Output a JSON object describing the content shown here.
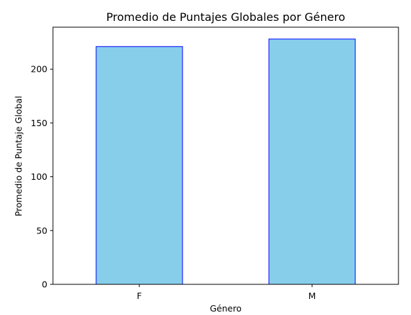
{
  "chart_data": {
    "type": "bar",
    "title": "Promedio de Puntajes Globales por Género",
    "xlabel": "Género",
    "ylabel": "Promedio de Puntaje Global",
    "categories": [
      "F",
      "M"
    ],
    "values": [
      221,
      228
    ],
    "ylim": [
      0,
      239
    ],
    "yticks": [
      0,
      50,
      100,
      150,
      200
    ],
    "grid": false,
    "legend": "none",
    "colors": {
      "bar_fill": "#87ceeb",
      "bar_edge": "#0000ff",
      "axis": "#000000"
    }
  }
}
